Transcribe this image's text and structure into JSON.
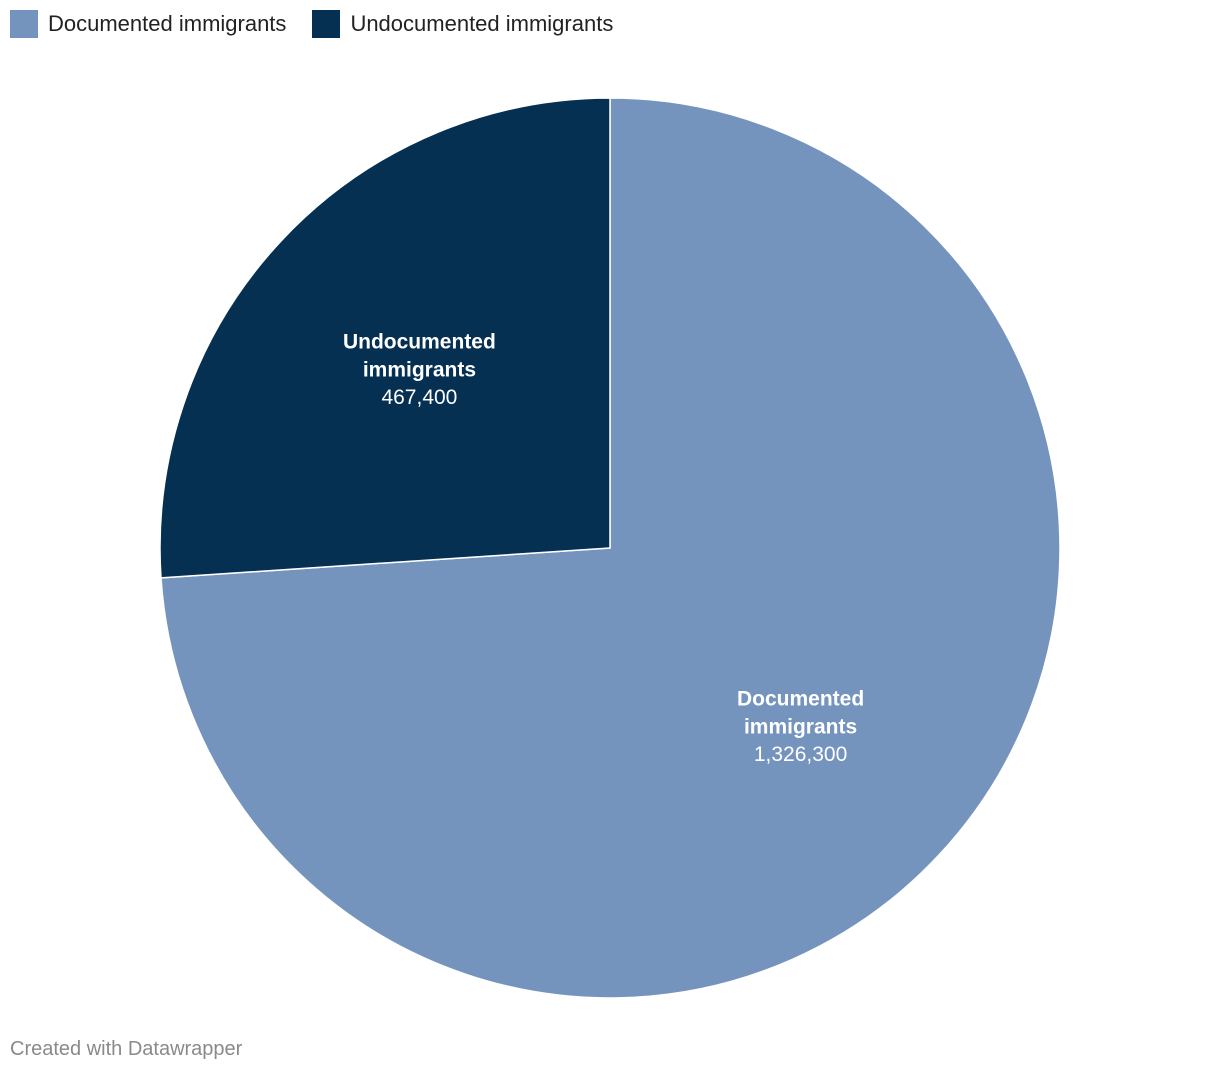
{
  "chart_data": {
    "type": "pie",
    "categories": [
      "Documented immigrants",
      "Undocumented immigrants"
    ],
    "values": [
      1326300,
      467400
    ],
    "value_labels": [
      "1,326,300",
      "467,400"
    ],
    "label_lines": [
      [
        "Documented",
        "immigrants"
      ],
      [
        "Undocumented",
        "immigrants"
      ]
    ],
    "colors": [
      "#7594bd",
      "#053051"
    ],
    "start_angle_deg": 0,
    "direction": "clockwise",
    "legend": {
      "position": "top-left",
      "items": [
        {
          "label": "Documented immigrants",
          "color": "#7594bd"
        },
        {
          "label": "Undocumented immigrants",
          "color": "#053051"
        }
      ]
    }
  },
  "footer": {
    "credit": "Created with Datawrapper"
  }
}
